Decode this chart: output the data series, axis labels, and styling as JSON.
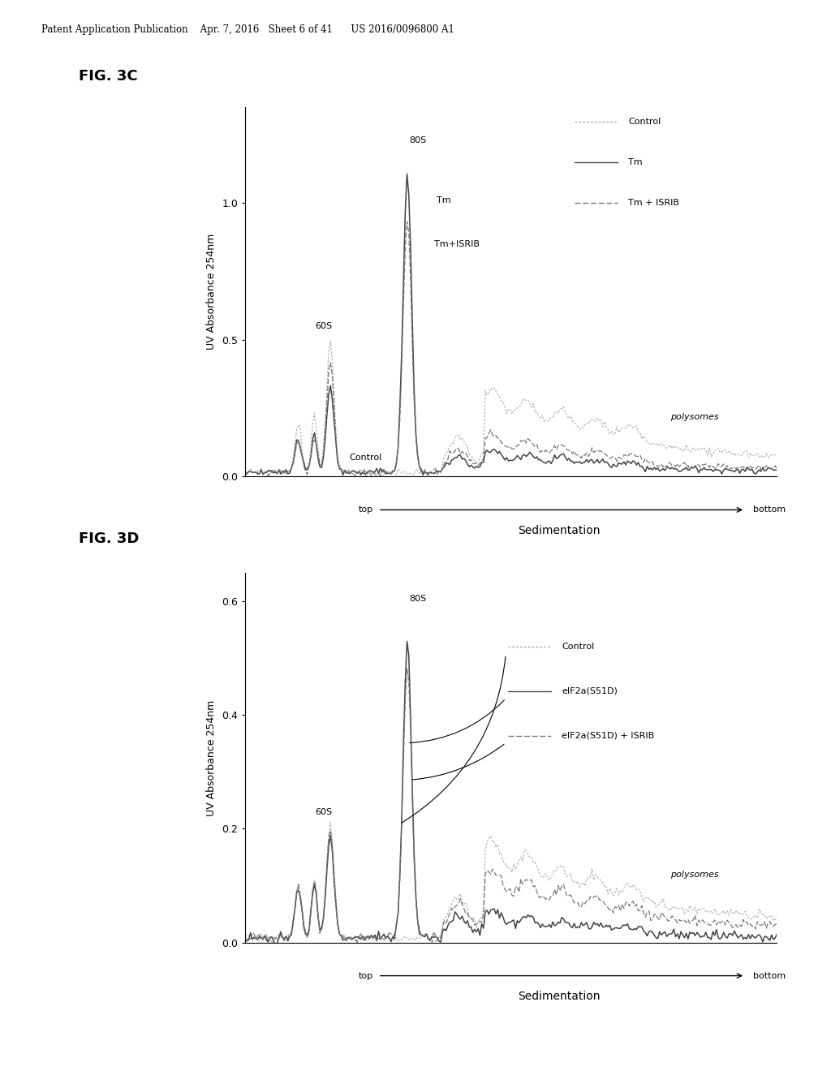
{
  "fig3c": {
    "title": "FIG. 3C",
    "ylabel": "UV Absorbance 254nm",
    "xlabel": "Sedimentation",
    "ylim": [
      0.0,
      1.35
    ],
    "yticks": [
      0.0,
      0.5,
      1.0
    ],
    "legend_labels": [
      "Control",
      "Tm",
      "Tm + ISRIB"
    ]
  },
  "fig3d": {
    "title": "FIG. 3D",
    "ylabel": "UV Absorbance 254nm",
    "xlabel": "Sedimentation",
    "ylim": [
      0.0,
      0.65
    ],
    "yticks": [
      0.0,
      0.2,
      0.4,
      0.6
    ],
    "legend_labels": [
      "Control",
      "eIF2a(S51D)",
      "eIF2a(S51D) + ISRIB"
    ]
  },
  "header_text": "Patent Application Publication    Apr. 7, 2016   Sheet 6 of 41      US 2016/0096800 A1",
  "bg_color": "#ffffff"
}
